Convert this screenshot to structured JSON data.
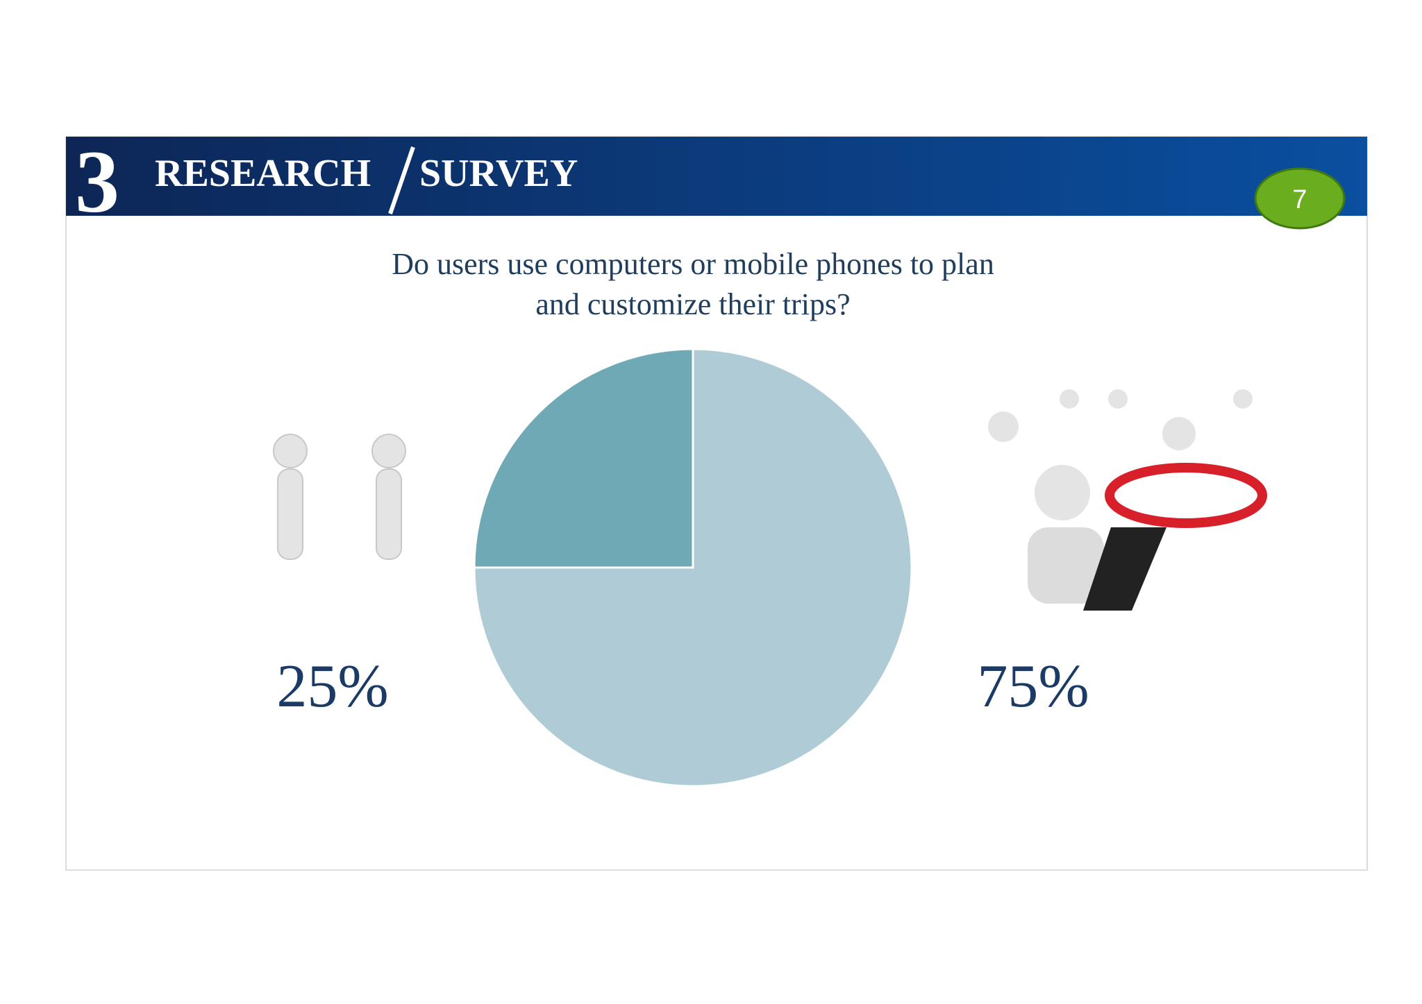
{
  "header": {
    "number": "3",
    "left": "RESEARCH",
    "right": "SURVEY",
    "badge": "7"
  },
  "chart_data": {
    "type": "pie",
    "title": "Do users use computers or mobile phones to plan and customize their trips?",
    "values": [
      25,
      75
    ],
    "value_labels": [
      "25%",
      "75%"
    ],
    "colors": [
      "#6fa9b5",
      "#afcbd5"
    ]
  }
}
